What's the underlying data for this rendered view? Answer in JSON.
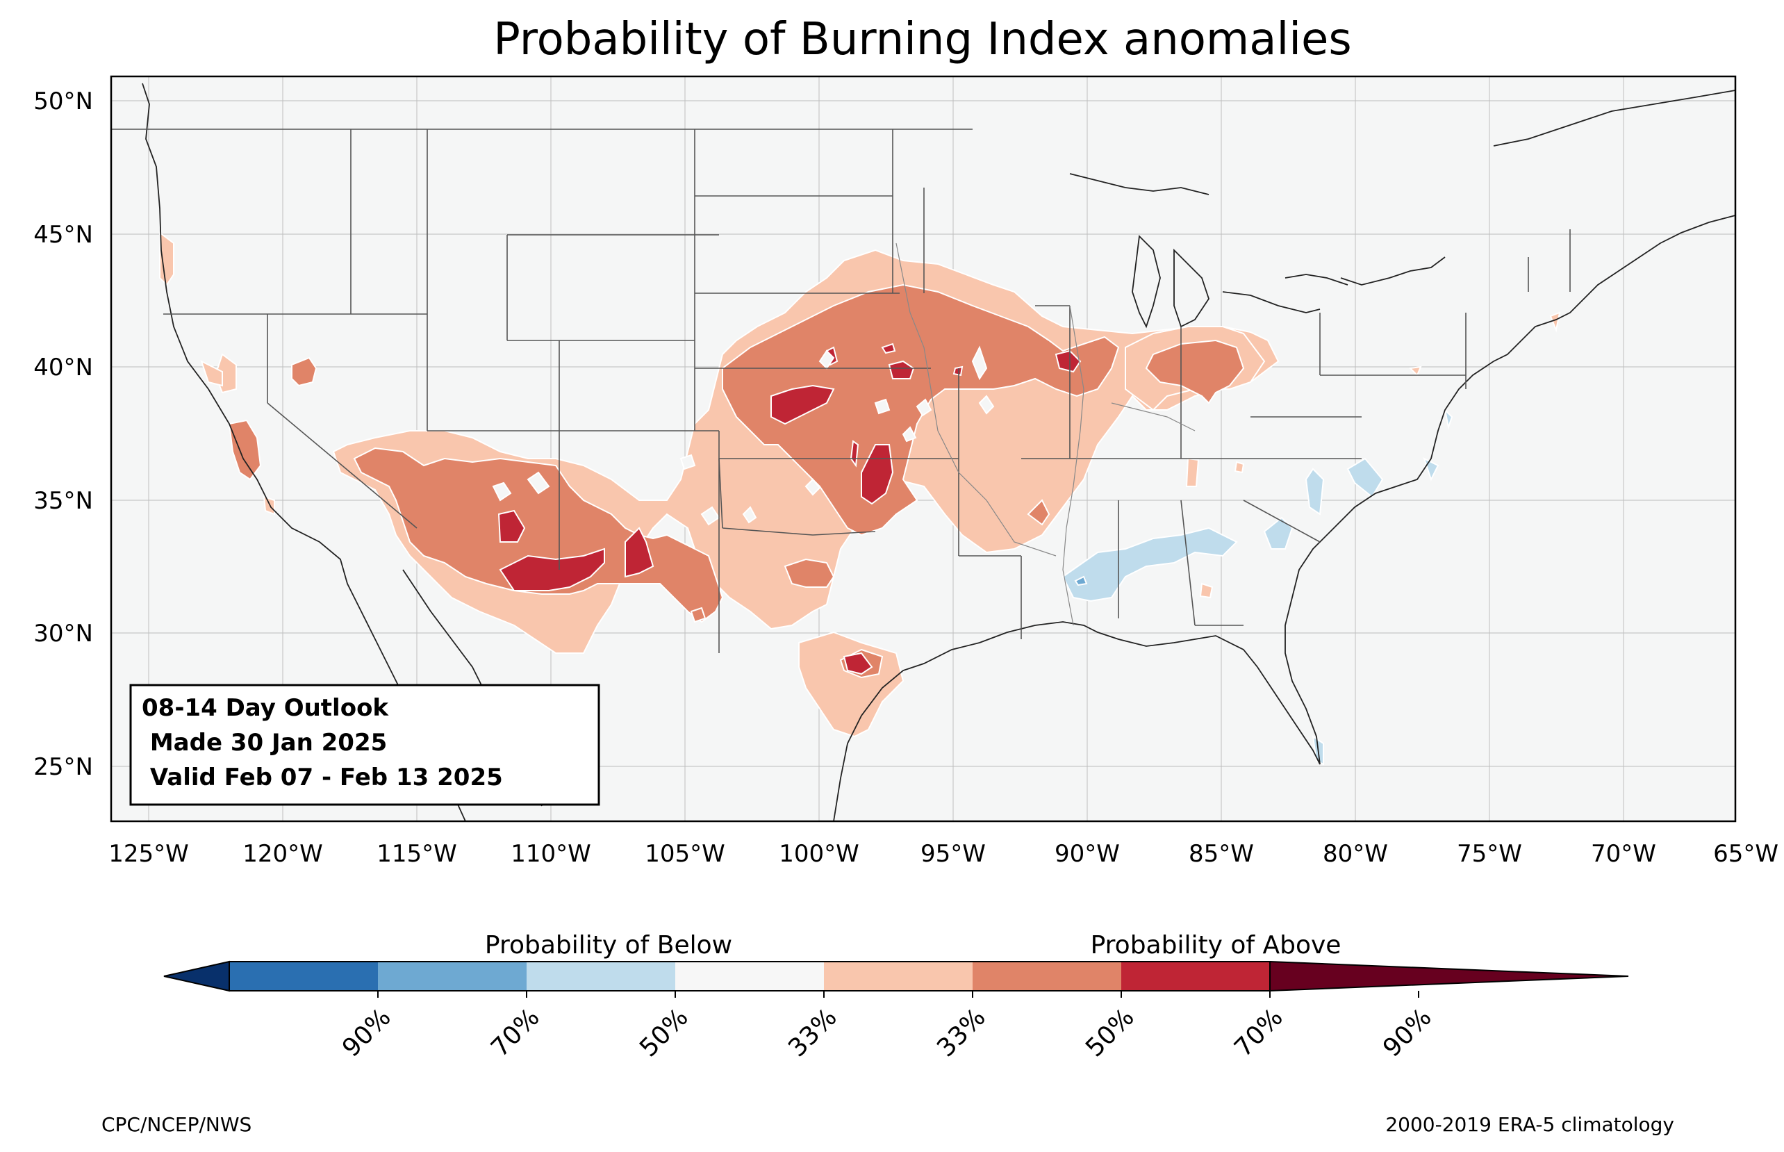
{
  "title": "Probability of Burning Index anomalies",
  "info_box": {
    "line1": "08-14 Day Outlook",
    "line2": " Made 30 Jan 2025",
    "line3": " Valid Feb 07 - Feb 13 2025"
  },
  "lat_labels": [
    "50°N",
    "45°N",
    "40°N",
    "35°N",
    "30°N",
    "25°N"
  ],
  "lon_labels": [
    "125°W",
    "120°W",
    "115°W",
    "110°W",
    "105°W",
    "100°W",
    "95°W",
    "90°W",
    "85°W",
    "80°W",
    "75°W",
    "70°W",
    "65°W"
  ],
  "colorbar": {
    "below_label": "Probability of Below",
    "above_label": "Probability of Above",
    "tick_labels": [
      "90%",
      "70%",
      "50%",
      "33%",
      "33%",
      "50%",
      "70%",
      "90%"
    ],
    "colors": [
      "#08306b",
      "#2a6fb1",
      "#6ea9d2",
      "#bfdcec",
      "#f7f7f7",
      "#f9c6ad",
      "#e08468",
      "#bf2535",
      "#67001f"
    ]
  },
  "footer": {
    "left": "CPC/NCEP/NWS",
    "right": "2000-2019 ERA-5 climatology"
  }
}
